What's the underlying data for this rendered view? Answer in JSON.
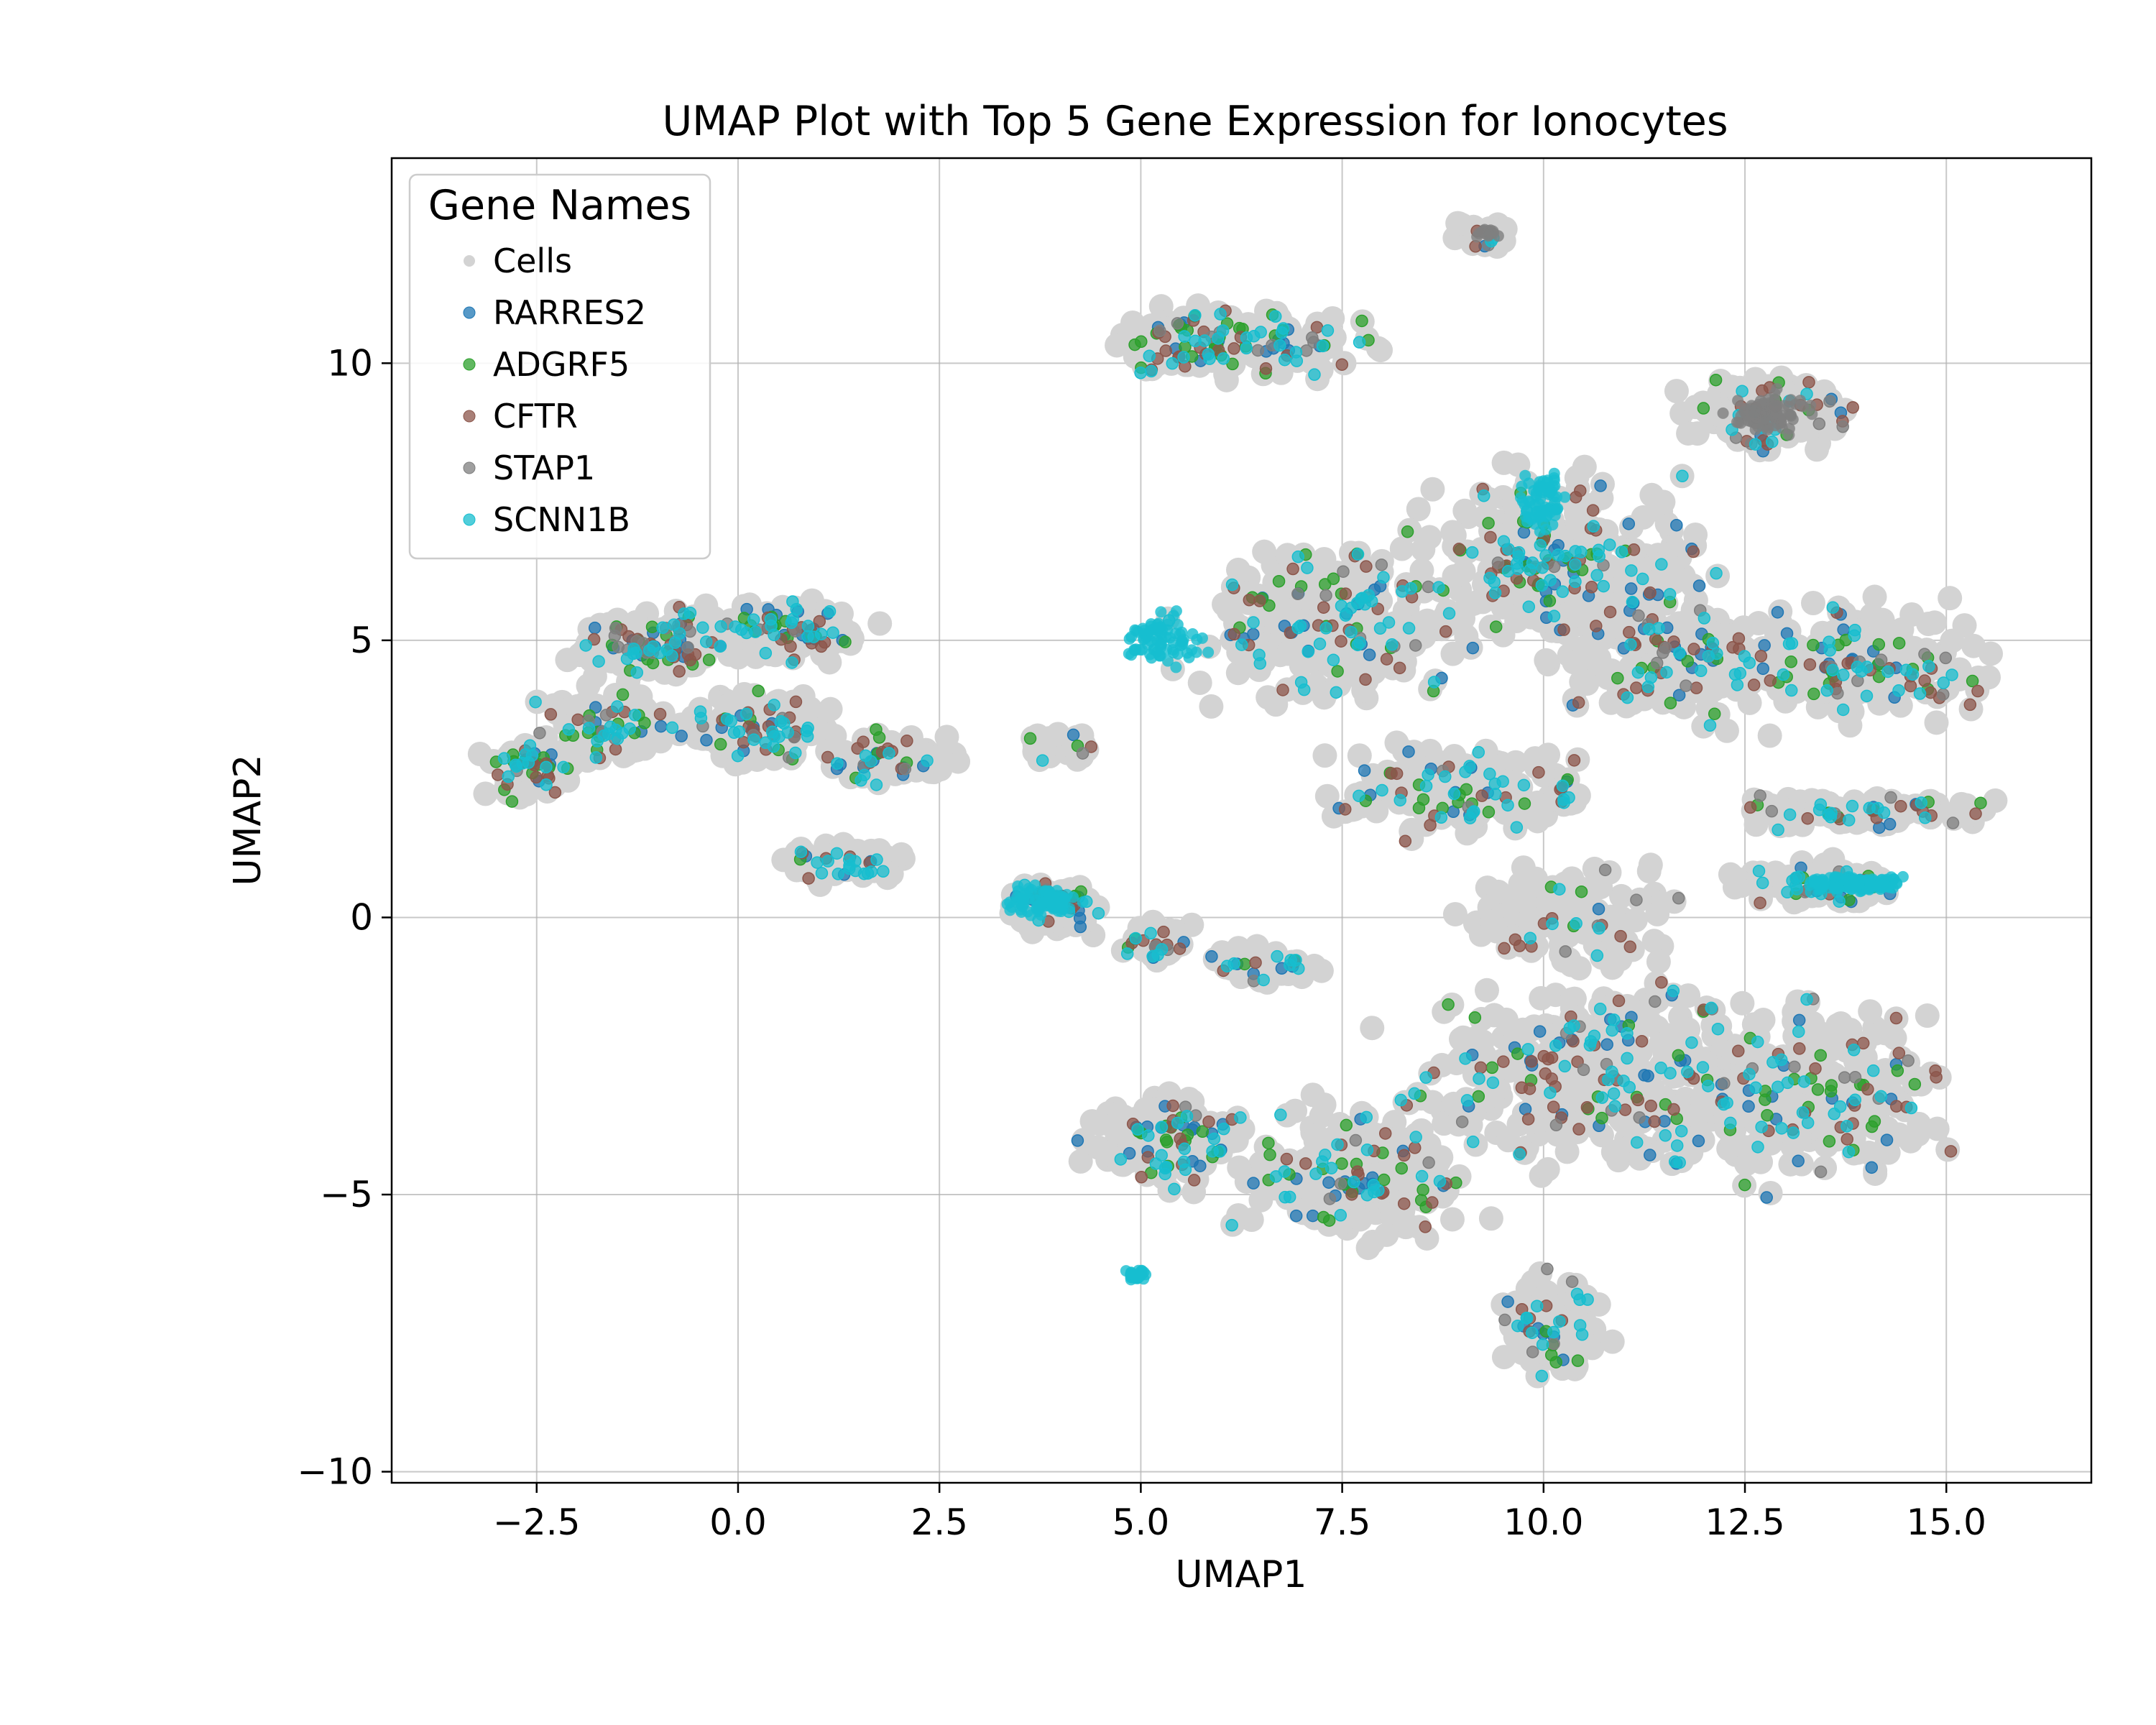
{
  "chart_data": {
    "type": "scatter",
    "title": "UMAP Plot with Top 5 Gene Expression for Ionocytes",
    "xlabel": "UMAP1",
    "ylabel": "UMAP2",
    "xlim": [
      -4.3,
      16.8
    ],
    "ylim": [
      -10.2,
      13.7
    ],
    "xticks": [
      -2.5,
      0.0,
      2.5,
      5.0,
      7.5,
      10.0,
      12.5,
      15.0
    ],
    "xtick_labels": [
      "−2.5",
      "0.0",
      "2.5",
      "5.0",
      "7.5",
      "10.0",
      "12.5",
      "15.0"
    ],
    "yticks": [
      -10,
      -5,
      0,
      5,
      10
    ],
    "ytick_labels": [
      "−10",
      "−5",
      "0",
      "5",
      "10"
    ],
    "grid": true,
    "legend": {
      "title": "Gene Names",
      "location": "top-left"
    },
    "series": [
      {
        "name": "Cells",
        "color": "#d3d3d3",
        "description_regions": [
          [
            -1.2,
            4.8
          ],
          [
            0.5,
            5.2
          ],
          [
            -2.6,
            2.6
          ],
          [
            0.6,
            3.3
          ],
          [
            2.0,
            2.8
          ],
          [
            1.5,
            1.0
          ],
          [
            3.9,
            0.2
          ],
          [
            5.0,
            -0.3
          ],
          [
            6.0,
            10.3
          ],
          [
            8.5,
            5.4
          ],
          [
            11.5,
            5.0
          ],
          [
            12.8,
            9.2
          ],
          [
            14.0,
            4.5
          ],
          [
            9.3,
            12.3
          ],
          [
            8.8,
            2.2
          ],
          [
            13.8,
            1.9
          ],
          [
            13.3,
            0.7
          ],
          [
            10.5,
            -3.0
          ],
          [
            13.3,
            -3.3
          ],
          [
            7.5,
            -5.0
          ],
          [
            5.3,
            -4.0
          ],
          [
            10.0,
            -7.5
          ],
          [
            4.0,
            3.1
          ]
        ]
      },
      {
        "name": "RARRES2",
        "color": "#1f77b4"
      },
      {
        "name": "ADGRF5",
        "color": "#2ca02c"
      },
      {
        "name": "CFTR",
        "color": "#8c564b"
      },
      {
        "name": "STAP1",
        "color": "#7f7f7f"
      },
      {
        "name": "SCNN1B",
        "color": "#17becf"
      }
    ]
  }
}
